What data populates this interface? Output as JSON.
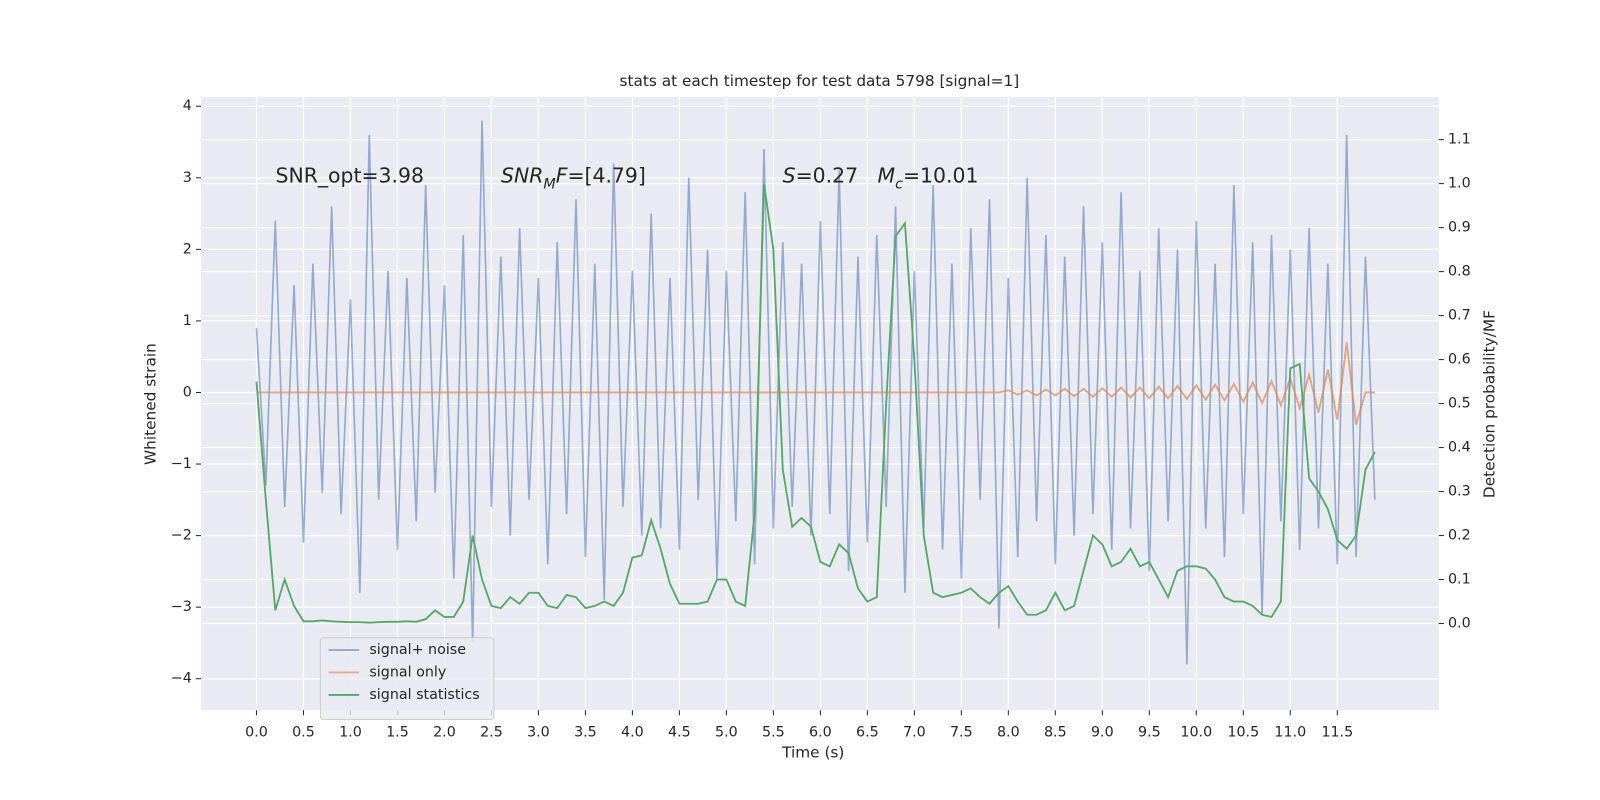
{
  "chart_data": {
    "type": "line",
    "title": "stats at each timestep for test data 5798 [signal=1]",
    "xlabel": "Time (s)",
    "ylabel": "Whitened strain",
    "y2label": "Detection probability/MF",
    "annotations": [
      {
        "parts": [
          {
            "text": "SNR_opt=3.98",
            "style": "normal"
          }
        ]
      },
      {
        "parts": [
          {
            "text": "SNR",
            "style": "italic"
          },
          {
            "text": "M",
            "style": "sub"
          },
          {
            "text": "F",
            "style": "italic"
          },
          {
            "text": "=[4.79]",
            "style": "normal"
          }
        ]
      },
      {
        "parts": [
          {
            "text": "S",
            "style": "italic"
          },
          {
            "text": "=0.27   ",
            "style": "normal"
          },
          {
            "text": "M",
            "style": "italic"
          },
          {
            "text": "c",
            "style": "sub"
          },
          {
            "text": "=10.01",
            "style": "normal"
          }
        ]
      }
    ],
    "grid": true,
    "legend": "lower left",
    "xlim": [
      -0.59,
      12.58
    ],
    "ylim": [
      -4.44,
      4.13
    ],
    "y2lim": [
      -0.197,
      1.197
    ],
    "xticks": [
      {
        "value": 0,
        "label": "0.0"
      },
      0.5,
      {
        "value": 1,
        "label": "1.0"
      },
      1.5,
      {
        "value": 2,
        "label": "2.0"
      },
      2.5,
      {
        "value": 3,
        "label": "3.0"
      },
      3.5,
      {
        "value": 4,
        "label": "4.0"
      },
      4.5,
      {
        "value": 5,
        "label": "5.0"
      },
      5.5,
      {
        "value": 6,
        "label": "6.0"
      },
      6.5,
      {
        "value": 7,
        "label": "7.0"
      },
      7.5,
      {
        "value": 8,
        "label": "8.0"
      },
      8.5,
      {
        "value": 9,
        "label": "9.0"
      },
      9.5,
      {
        "value": 10,
        "label": "10.0"
      },
      10.5,
      {
        "value": 11,
        "label": "11.0"
      },
      11.5
    ],
    "yticks": [
      {
        "value": -4,
        "label": "−4"
      },
      {
        "value": -3,
        "label": "−3"
      },
      {
        "value": -2,
        "label": "−2"
      },
      {
        "value": -1,
        "label": "−1"
      },
      0,
      1,
      2,
      3,
      4
    ],
    "y2ticks": [
      {
        "value": 0,
        "label": "0.0"
      },
      0.1,
      0.2,
      0.3,
      0.4,
      0.5,
      0.6,
      0.7,
      0.8,
      0.9,
      {
        "value": 1,
        "label": "1.0"
      },
      1.1
    ],
    "x": [
      0,
      0.1,
      0.2,
      0.3,
      0.4,
      0.5,
      0.6,
      0.7,
      0.8,
      0.9,
      1,
      1.1,
      1.2,
      1.3,
      1.4,
      1.5,
      1.6,
      1.7,
      1.8,
      1.9,
      2,
      2.1,
      2.2,
      2.3,
      2.4,
      2.5,
      2.6,
      2.7,
      2.8,
      2.9,
      3,
      3.1,
      3.2,
      3.3,
      3.4,
      3.5,
      3.6,
      3.7,
      3.8,
      3.9,
      4,
      4.1,
      4.2,
      4.3,
      4.4,
      4.5,
      4.6,
      4.7,
      4.8,
      4.9,
      5,
      5.1,
      5.2,
      5.3,
      5.4,
      5.5,
      5.6,
      5.7,
      5.8,
      5.9,
      6,
      6.1,
      6.2,
      6.3,
      6.4,
      6.5,
      6.6,
      6.7,
      6.8,
      6.9,
      7,
      7.1,
      7.2,
      7.3,
      7.4,
      7.5,
      7.6,
      7.7,
      7.8,
      7.9,
      8,
      8.1,
      8.2,
      8.3,
      8.4,
      8.5,
      8.6,
      8.7,
      8.8,
      8.9,
      9,
      9.1,
      9.2,
      9.3,
      9.4,
      9.5,
      9.6,
      9.7,
      9.8,
      9.9,
      10,
      10.1,
      10.2,
      10.3,
      10.4,
      10.5,
      10.6,
      10.7,
      10.8,
      10.9,
      11,
      11.1,
      11.2,
      11.3,
      11.4,
      11.5,
      11.6,
      11.7,
      11.8,
      11.9
    ],
    "series": [
      {
        "name": "signal+ noise",
        "color": "#4c72b0",
        "values": [
          0.9,
          -1.3,
          2.4,
          -1.6,
          1.5,
          -2.1,
          1.8,
          -1.4,
          2.6,
          -1.7,
          1.3,
          -2.8,
          3.6,
          -1.5,
          1.7,
          -2.2,
          1.6,
          -1.8,
          2.9,
          -1.4,
          1.5,
          -2.6,
          2.2,
          -3.5,
          3.8,
          -1.6,
          1.9,
          -2.0,
          2.3,
          -1.5,
          1.6,
          -2.4,
          2.1,
          -1.7,
          2.7,
          -2.3,
          1.8,
          -2.9,
          3.2,
          -1.6,
          1.7,
          -2.0,
          2.5,
          -1.9,
          1.6,
          -2.2,
          3.0,
          -1.5,
          2.0,
          -2.6,
          1.7,
          -1.8,
          2.8,
          -2.4,
          3.4,
          -1.9,
          2.1,
          -1.6,
          1.8,
          -2.0,
          2.4,
          -1.7,
          3.1,
          -2.5,
          1.9,
          -2.1,
          2.2,
          -1.6,
          2.6,
          -2.8,
          1.7,
          -1.9,
          2.9,
          -2.2,
          1.8,
          -2.6,
          2.3,
          -1.5,
          2.7,
          -3.3,
          1.6,
          -2.3,
          3.0,
          -1.8,
          2.2,
          -2.4,
          1.9,
          -2.0,
          2.6,
          -1.7,
          2.1,
          -2.2,
          2.8,
          -1.9,
          1.7,
          -2.5,
          2.3,
          -1.8,
          2.0,
          -3.8,
          2.4,
          -1.9,
          1.8,
          -2.3,
          2.9,
          -1.7,
          2.1,
          -3.1,
          2.2,
          -1.8,
          2.0,
          -2.2,
          2.3,
          -1.9,
          1.8,
          -2.4,
          3.6,
          -2.3,
          1.9,
          -1.5
        ]
      },
      {
        "name": "signal only",
        "color": "#dd8452",
        "values": [
          0,
          0,
          0,
          0,
          0,
          0,
          0,
          0,
          0,
          0,
          0,
          0,
          0,
          0,
          0,
          0,
          0,
          0,
          0,
          0,
          0,
          0,
          0,
          0,
          0,
          0,
          0,
          0,
          0,
          0,
          0,
          0,
          0,
          0,
          0,
          0,
          0,
          0,
          0,
          0,
          0,
          0,
          0,
          0,
          0,
          0,
          0,
          0,
          0,
          0,
          0,
          0,
          0,
          0,
          0,
          0,
          0,
          0,
          0,
          0,
          0,
          0,
          0,
          0,
          0,
          0,
          0,
          0,
          0,
          0,
          0,
          0,
          0,
          0,
          0,
          0,
          0,
          0,
          0,
          0,
          0.03,
          -0.03,
          0.03,
          -0.04,
          0.04,
          -0.04,
          0.05,
          -0.05,
          0.05,
          -0.06,
          0.06,
          -0.06,
          0.07,
          -0.07,
          0.07,
          -0.08,
          0.08,
          -0.08,
          0.09,
          -0.09,
          0.1,
          -0.1,
          0.11,
          -0.11,
          0.12,
          -0.13,
          0.14,
          -0.15,
          0.16,
          -0.18,
          0.2,
          -0.22,
          0.25,
          -0.28,
          0.32,
          -0.38,
          0.7,
          -0.45,
          0,
          0
        ]
      },
      {
        "name": "signal statistics",
        "color": "#55a868",
        "axis": "y2",
        "values": [
          0.55,
          0.28,
          0.03,
          0.1,
          0.04,
          0.005,
          0.005,
          0.007,
          0.005,
          0.004,
          0.003,
          0.003,
          0.002,
          0.003,
          0.004,
          0.004,
          0.005,
          0.004,
          0.01,
          0.03,
          0.015,
          0.015,
          0.05,
          0.2,
          0.1,
          0.04,
          0.035,
          0.06,
          0.045,
          0.07,
          0.07,
          0.04,
          0.035,
          0.065,
          0.06,
          0.035,
          0.04,
          0.05,
          0.04,
          0.07,
          0.15,
          0.155,
          0.235,
          0.17,
          0.09,
          0.045,
          0.045,
          0.045,
          0.05,
          0.1,
          0.1,
          0.05,
          0.04,
          0.25,
          1.0,
          0.85,
          0.35,
          0.22,
          0.24,
          0.22,
          0.14,
          0.13,
          0.18,
          0.16,
          0.08,
          0.05,
          0.06,
          0.5,
          0.88,
          0.91,
          0.6,
          0.2,
          0.07,
          0.06,
          0.065,
          0.07,
          0.08,
          0.06,
          0.045,
          0.07,
          0.085,
          0.05,
          0.02,
          0.02,
          0.03,
          0.07,
          0.03,
          0.04,
          0.12,
          0.2,
          0.18,
          0.13,
          0.14,
          0.17,
          0.13,
          0.14,
          0.1,
          0.06,
          0.12,
          0.13,
          0.13,
          0.125,
          0.1,
          0.06,
          0.05,
          0.05,
          0.04,
          0.02,
          0.015,
          0.05,
          0.58,
          0.59,
          0.33,
          0.3,
          0.26,
          0.19,
          0.17,
          0.2,
          0.35,
          0.39
        ]
      }
    ]
  }
}
